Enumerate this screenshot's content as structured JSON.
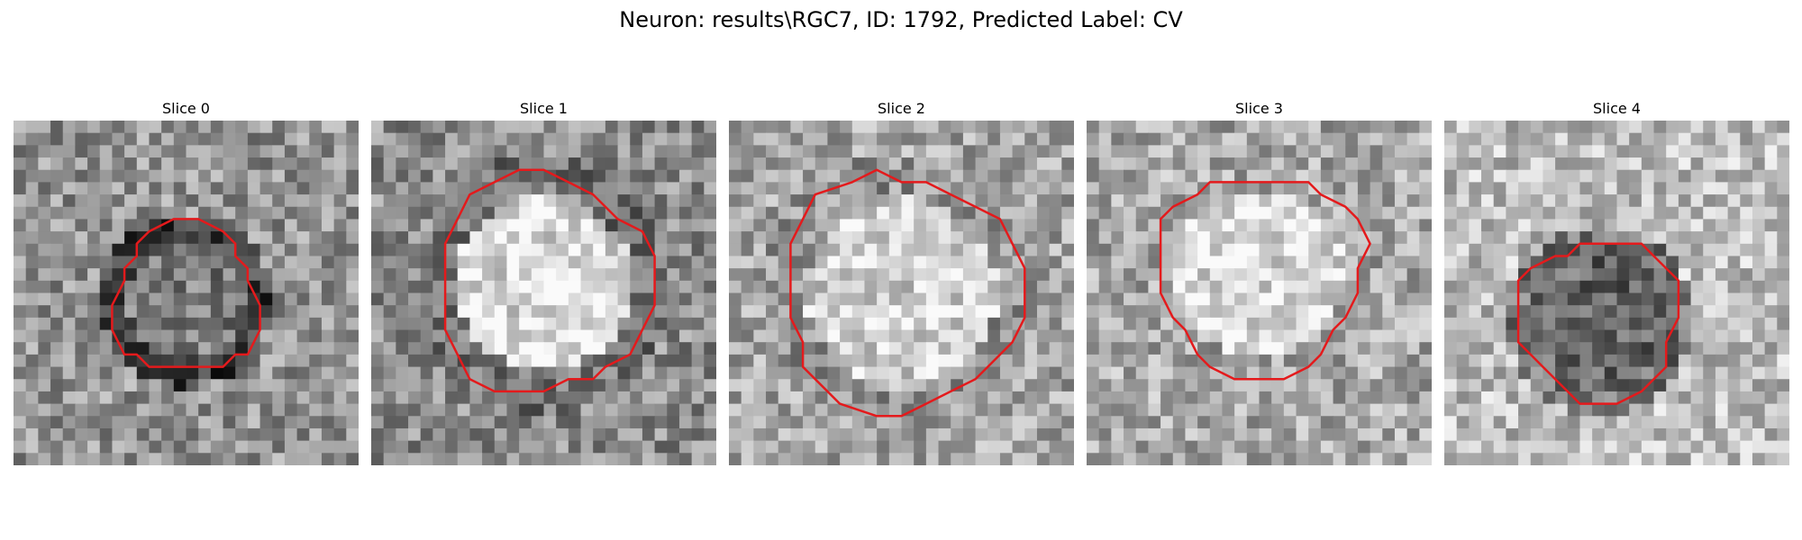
{
  "figure": {
    "title": "Neuron: results\\RGC7, ID: 1792, Predicted Label: CV"
  },
  "contour_color": "#e41a1c",
  "slices": [
    {
      "label": "Slice 0",
      "center": [
        0.5,
        0.52
      ],
      "radius": 0.22,
      "ring": 0.75,
      "core": 0.48,
      "bg": 0.58
    },
    {
      "label": "Slice 1",
      "center": [
        0.5,
        0.47
      ],
      "radius": 0.33,
      "ring": 0.55,
      "core": 0.86,
      "bg": 0.55
    },
    {
      "label": "Slice 2",
      "center": [
        0.5,
        0.5
      ],
      "radius": 0.36,
      "ring": 0.42,
      "core": 0.82,
      "bg": 0.65
    },
    {
      "label": "Slice 3",
      "center": [
        0.5,
        0.44
      ],
      "radius": 0.31,
      "ring": 0.35,
      "core": 0.86,
      "bg": 0.66
    },
    {
      "label": "Slice 4",
      "center": [
        0.45,
        0.58
      ],
      "radius": 0.24,
      "ring": 0.55,
      "core": 0.4,
      "bg": 0.74
    }
  ]
}
